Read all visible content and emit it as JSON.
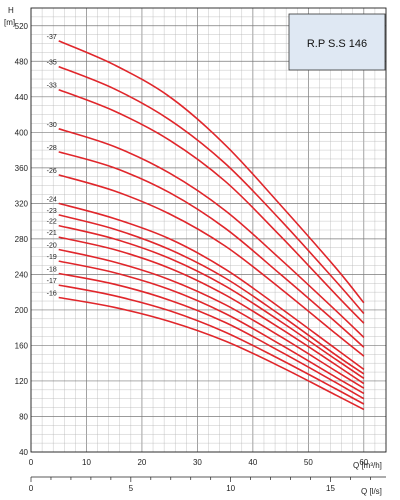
{
  "chart_data": {
    "type": "line",
    "title": "R.P S.S 146",
    "ylabel": "H",
    "yunit": "[m]",
    "xlabel": "Q [m³/h]",
    "x2label": "Q [l/s]",
    "xlim": [
      0,
      64
    ],
    "ylim": [
      40,
      540
    ],
    "x2lim": [
      0,
      17.78
    ],
    "yticks": [
      40,
      80,
      120,
      160,
      200,
      240,
      280,
      320,
      360,
      400,
      440,
      480,
      520
    ],
    "xticks": [
      0,
      10,
      20,
      30,
      40,
      50,
      60
    ],
    "x2ticks": [
      0,
      5,
      10,
      15
    ],
    "grid": true,
    "line_color": "#e0262b",
    "series": [
      {
        "name": "37",
        "x": [
          5,
          15,
          25,
          35,
          45,
          55,
          60
        ],
        "y": [
          503,
          476,
          440,
          386,
          318,
          247,
          208
        ]
      },
      {
        "name": "35",
        "x": [
          5,
          15,
          25,
          35,
          45,
          55,
          60
        ],
        "y": [
          474,
          449,
          414,
          365,
          301,
          232,
          196
        ]
      },
      {
        "name": "33",
        "x": [
          5,
          15,
          25,
          35,
          45,
          55,
          60
        ],
        "y": [
          448,
          424,
          391,
          345,
          283,
          217,
          185
        ]
      },
      {
        "name": "30",
        "x": [
          5,
          15,
          25,
          35,
          45,
          55,
          60
        ],
        "y": [
          404,
          384,
          354,
          312,
          257,
          199,
          169
        ]
      },
      {
        "name": "28",
        "x": [
          5,
          15,
          25,
          35,
          45,
          55,
          60
        ],
        "y": [
          378,
          360,
          332,
          292,
          240,
          186,
          158
        ]
      },
      {
        "name": "26",
        "x": [
          5,
          15,
          25,
          35,
          45,
          55,
          60
        ],
        "y": [
          352,
          334,
          308,
          272,
          224,
          173,
          148
        ]
      },
      {
        "name": "24",
        "x": [
          5,
          15,
          25,
          35,
          45,
          55,
          60
        ],
        "y": [
          320,
          303,
          280,
          246,
          202,
          156,
          133
        ]
      },
      {
        "name": "23",
        "x": [
          5,
          15,
          25,
          35,
          45,
          55,
          60
        ],
        "y": [
          307,
          291,
          268,
          236,
          194,
          149,
          128
        ]
      },
      {
        "name": "22",
        "x": [
          5,
          15,
          25,
          35,
          45,
          55,
          60
        ],
        "y": [
          295,
          280,
          258,
          227,
          187,
          144,
          123
        ]
      },
      {
        "name": "21",
        "x": [
          5,
          15,
          25,
          35,
          45,
          55,
          60
        ],
        "y": [
          282,
          268,
          247,
          217,
          179,
          138,
          117
        ]
      },
      {
        "name": "20",
        "x": [
          5,
          15,
          25,
          35,
          45,
          55,
          60
        ],
        "y": [
          268,
          254,
          234,
          206,
          170,
          131,
          112
        ]
      },
      {
        "name": "19",
        "x": [
          5,
          15,
          25,
          35,
          45,
          55,
          60
        ],
        "y": [
          255,
          242,
          223,
          196,
          161,
          124,
          106
        ]
      },
      {
        "name": "18",
        "x": [
          5,
          15,
          25,
          35,
          45,
          55,
          60
        ],
        "y": [
          241,
          229,
          211,
          186,
          153,
          118,
          100
        ]
      },
      {
        "name": "17",
        "x": [
          5,
          15,
          25,
          35,
          45,
          55,
          60
        ],
        "y": [
          228,
          216,
          199,
          175,
          144,
          111,
          94
        ]
      },
      {
        "name": "16",
        "x": [
          5,
          15,
          25,
          35,
          45,
          55,
          60
        ],
        "y": [
          214,
          203,
          187,
          165,
          136,
          104,
          88
        ]
      }
    ]
  }
}
